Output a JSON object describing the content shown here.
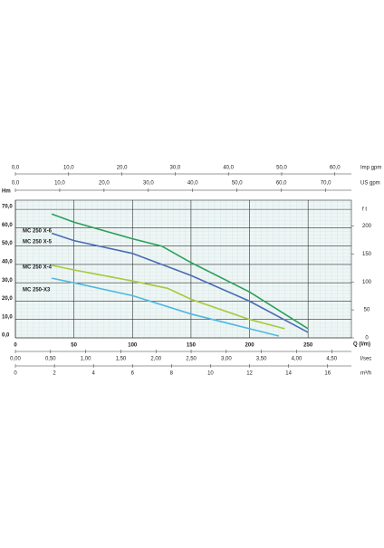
{
  "chart_data": {
    "type": "line",
    "x_label": "Q (l/m)",
    "y_label": "Hm",
    "y2_label": "f t",
    "xlim": [
      0,
      287
    ],
    "xticks": [
      0,
      50,
      100,
      150,
      200,
      250
    ],
    "ylim": [
      0,
      75
    ],
    "yticks": [
      {
        "value": 0,
        "label": "0,0"
      },
      {
        "value": 10,
        "label": "10,0"
      },
      {
        "value": 20,
        "label": "20,0"
      },
      {
        "value": 30,
        "label": "30,0"
      },
      {
        "value": 40,
        "label": "40,0"
      },
      {
        "value": 50,
        "label": "50,0"
      },
      {
        "value": 60,
        "label": "60,0"
      },
      {
        "value": 70,
        "label": "70,0"
      }
    ],
    "y2lim": [
      0,
      246
    ],
    "y2ticks": [
      0,
      50,
      100,
      150,
      200
    ],
    "grid": true,
    "top_axes": [
      {
        "label": "Imp gpm",
        "lim": [
          0,
          63.1
        ],
        "ticks": [
          {
            "value": 0,
            "label": "0,0"
          },
          {
            "value": 10,
            "label": "10,0"
          },
          {
            "value": 20,
            "label": "20,0"
          },
          {
            "value": 30,
            "label": "30,0"
          },
          {
            "value": 40,
            "label": "40,0"
          },
          {
            "value": 50,
            "label": "50,0"
          },
          {
            "value": 60,
            "label": "60,0"
          }
        ]
      },
      {
        "label": "US gpm",
        "lim": [
          0,
          75.8
        ],
        "ticks": [
          {
            "value": 0,
            "label": "0,0"
          },
          {
            "value": 10,
            "label": "10,0"
          },
          {
            "value": 20,
            "label": "20,0"
          },
          {
            "value": 30,
            "label": "30,0"
          },
          {
            "value": 40,
            "label": "40,0"
          },
          {
            "value": 50,
            "label": "50,0"
          },
          {
            "value": 60,
            "label": "60,0"
          },
          {
            "value": 70,
            "label": "70,0"
          }
        ]
      }
    ],
    "bottom_axes": [
      {
        "label": "l/sec",
        "lim": [
          0,
          4.78
        ],
        "ticks": [
          {
            "value": 0,
            "label": "0,00"
          },
          {
            "value": 0.5,
            "label": "0,50"
          },
          {
            "value": 1,
            "label": "1,00"
          },
          {
            "value": 1.5,
            "label": "1,50"
          },
          {
            "value": 2,
            "label": "2,00"
          },
          {
            "value": 2.5,
            "label": "2,50"
          },
          {
            "value": 3,
            "label": "3,00"
          },
          {
            "value": 3.5,
            "label": "3,50"
          },
          {
            "value": 4,
            "label": "4,00"
          },
          {
            "value": 4.5,
            "label": "4,50"
          }
        ]
      },
      {
        "label": "m³/h",
        "lim": [
          0,
          17.22
        ],
        "ticks": [
          0,
          2,
          4,
          6,
          8,
          10,
          12,
          14,
          16
        ]
      }
    ],
    "series": [
      {
        "name": "MC 250 X-6",
        "color": "#2e9e5b",
        "x": [
          31,
          50,
          100,
          125,
          150,
          200,
          250
        ],
        "values": [
          67.5,
          63,
          54,
          50,
          41,
          25,
          5
        ]
      },
      {
        "name": "MC 250 X-5",
        "color": "#4a6bb5",
        "x": [
          31,
          50,
          100,
          150,
          200,
          250
        ],
        "values": [
          57,
          53,
          46,
          34,
          20,
          3
        ]
      },
      {
        "name": "MC 250 X-4",
        "color": "#a7c93c",
        "x": [
          31,
          50,
          100,
          130,
          150,
          200,
          230
        ],
        "values": [
          39.5,
          37,
          31,
          27,
          21,
          10,
          5
        ]
      },
      {
        "name": "MC 250-X3",
        "color": "#4fb8e0",
        "x": [
          31,
          50,
          100,
          150,
          200,
          225
        ],
        "values": [
          32.5,
          30,
          23,
          13,
          5,
          1
        ]
      }
    ]
  }
}
